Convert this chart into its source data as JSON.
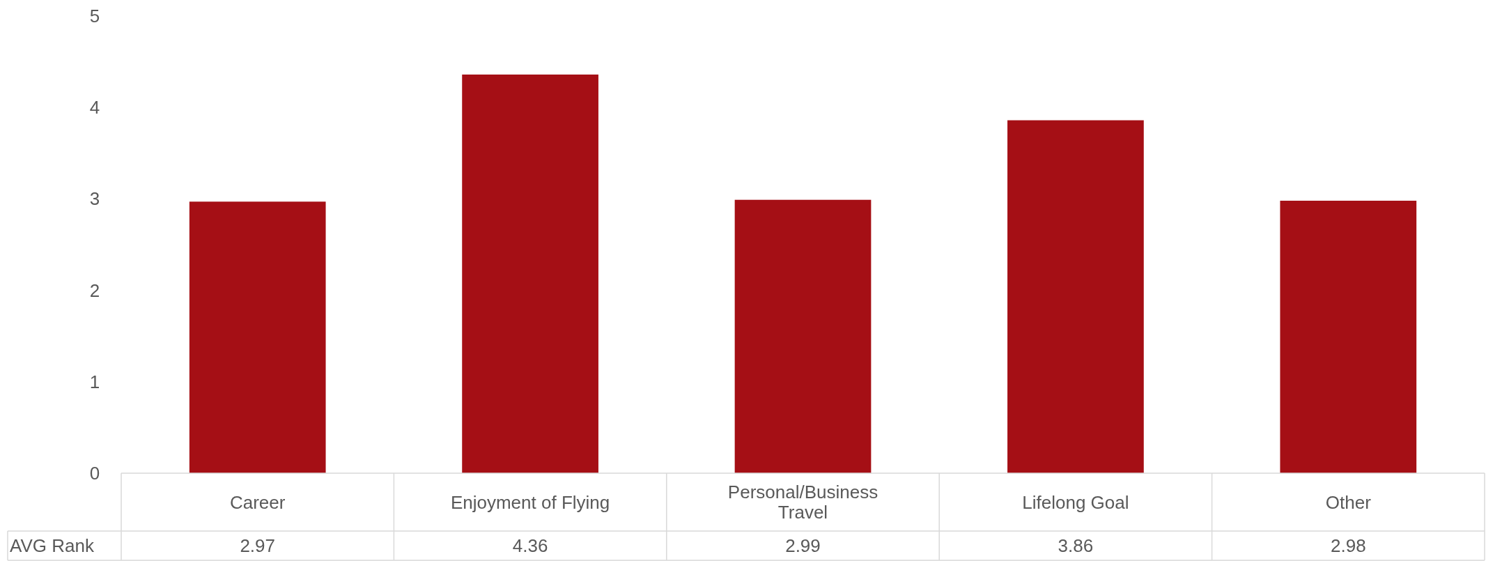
{
  "chart_data": {
    "type": "bar",
    "categories": [
      "Career",
      "Enjoyment of Flying",
      "Personal/Business Travel",
      "Lifelong Goal",
      "Other"
    ],
    "series": [
      {
        "name": "AVG Rank",
        "color": "#a50f15",
        "values": [
          2.97,
          4.36,
          2.99,
          3.86,
          2.98
        ]
      }
    ],
    "ylim": [
      0,
      5
    ],
    "yticks": [
      0,
      1,
      2,
      3,
      4,
      5
    ],
    "grid": false,
    "data_labels": true
  }
}
